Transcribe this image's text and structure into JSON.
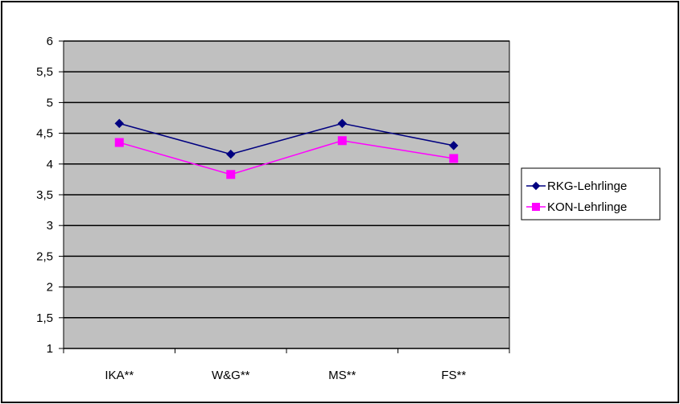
{
  "chart_data": {
    "type": "line",
    "categories": [
      "IKA**",
      "W&G**",
      "MS**",
      "FS**"
    ],
    "series": [
      {
        "name": "RKG-Lehrlinge",
        "values": [
          4.66,
          4.16,
          4.66,
          4.3
        ],
        "color": "#000080",
        "marker": "diamond"
      },
      {
        "name": "KON-Lehrlinge",
        "values": [
          4.35,
          3.83,
          4.38,
          4.09
        ],
        "color": "#ff00ff",
        "marker": "square"
      }
    ],
    "yticks": [
      "1",
      "1,5",
      "2",
      "2,5",
      "3",
      "3,5",
      "4",
      "4,5",
      "5",
      "5,5",
      "6"
    ],
    "ylim": [
      1,
      6
    ],
    "grid": true,
    "plot_background": "#c0c0c0",
    "legend_position": "right"
  }
}
